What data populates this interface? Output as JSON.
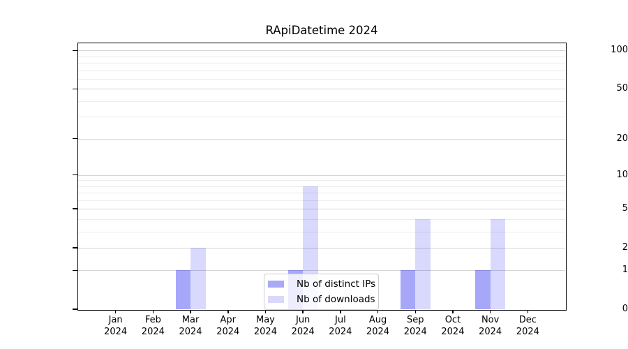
{
  "title": "RApiDatetime 2024",
  "chart_data": {
    "type": "bar",
    "title": "RApiDatetime 2024",
    "x_months": [
      "Jan",
      "Feb",
      "Mar",
      "Apr",
      "May",
      "Jun",
      "Jul",
      "Aug",
      "Sep",
      "Oct",
      "Nov",
      "Dec"
    ],
    "x_year": "2024",
    "series": [
      {
        "name": "Nb of distinct IPs",
        "color": "rgba(0,0,240,0.345)",
        "solid_color": "#a9a9f6",
        "values": [
          0,
          0,
          1,
          0,
          0,
          1,
          0,
          0,
          1,
          0,
          1,
          0
        ]
      },
      {
        "name": "Nb of downloads",
        "color": "rgba(0,0,240,0.148)",
        "solid_color": "#d9d9fa",
        "values": [
          0,
          0,
          2,
          0,
          0,
          8,
          0,
          0,
          4,
          0,
          4,
          0
        ]
      }
    ],
    "yscale": "log1p",
    "ylim": [
      0,
      114
    ],
    "y_major_ticks": [
      0,
      1,
      2,
      5,
      10,
      20,
      50,
      100
    ],
    "y_minor_gridlines": [
      3,
      4,
      6,
      7,
      8,
      9,
      30,
      40,
      60,
      70,
      80,
      90
    ],
    "grid": "horizontal",
    "legend_position": "lower-center",
    "colors": {
      "major_grid": "#d4d4d4",
      "minor_grid": "#ececec",
      "axis": "#000000",
      "background": "#ffffff"
    }
  }
}
